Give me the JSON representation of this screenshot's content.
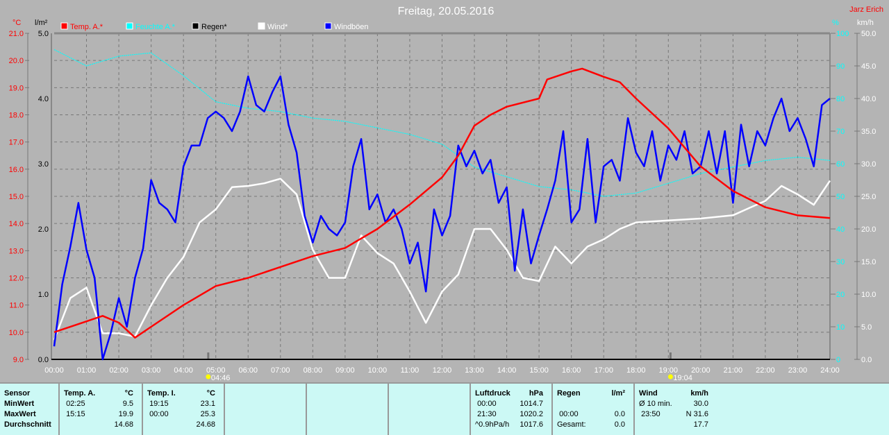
{
  "title": "Freitag, 20.05.2016",
  "author": "Jarz Erich",
  "colors": {
    "temp": "#ff0000",
    "humidity": "#00ffff",
    "rain": "#000000",
    "wind": "#ffffff",
    "gust": "#0000ff",
    "background": "#b4b4b4",
    "panel": "#ccf9f5"
  },
  "chart_data": {
    "type": "line",
    "title": "Freitag, 20.05.2016",
    "legend": [
      "Temp. A.*",
      "Feuchte A.*",
      "Regen*",
      "Wind*",
      "Windböen"
    ],
    "legend_placement": "top-left",
    "grid": true,
    "x_ticks": [
      "00:00",
      "01:00",
      "02:00",
      "03:00",
      "04:00",
      "05:00",
      "06:00",
      "07:00",
      "08:00",
      "09:00",
      "10:00",
      "11:00",
      "12:00",
      "13:00",
      "14:00",
      "15:00",
      "16:00",
      "17:00",
      "18:00",
      "19:00",
      "20:00",
      "21:00",
      "22:00",
      "23:00",
      "24:00"
    ],
    "axes": {
      "temp": {
        "unit": "°C",
        "range": [
          9.0,
          21.0
        ],
        "ticks": [
          "9.0",
          "10.0",
          "11.0",
          "12.0",
          "13.0",
          "14.0",
          "15.0",
          "16.0",
          "17.0",
          "18.0",
          "19.0",
          "20.0",
          "21.0"
        ]
      },
      "rain": {
        "unit": "l/m²",
        "range": [
          0,
          5.0
        ],
        "ticks": [
          "0.0",
          "1.0",
          "2.0",
          "3.0",
          "4.0",
          "5.0"
        ]
      },
      "humidity": {
        "unit": "%",
        "range": [
          0,
          100
        ],
        "ticks": [
          "0",
          "10",
          "20",
          "30",
          "40",
          "50",
          "60",
          "70",
          "80",
          "90",
          "100"
        ]
      },
      "wind": {
        "unit": "km/h",
        "range": [
          0,
          50
        ],
        "ticks": [
          "0.0",
          "5.0",
          "10.0",
          "15.0",
          "20.0",
          "25.0",
          "30.0",
          "35.0",
          "40.0",
          "45.0",
          "50.0"
        ]
      }
    },
    "markers": [
      {
        "label": "04:46",
        "type": "sunrise",
        "time": "04:46"
      },
      {
        "label": "19:04",
        "type": "sunset",
        "time": "19:04"
      }
    ],
    "series": [
      {
        "name": "Temp. A.*",
        "axis": "temp",
        "color": "#ff0000",
        "t": [
          "00:00",
          "01:00",
          "01:30",
          "02:00",
          "02:30",
          "03:00",
          "04:00",
          "05:00",
          "06:00",
          "07:00",
          "08:00",
          "09:00",
          "10:00",
          "11:00",
          "12:00",
          "12:30",
          "13:00",
          "13:30",
          "14:00",
          "15:00",
          "15:15",
          "16:00",
          "16:20",
          "17:00",
          "17:30",
          "18:00",
          "19:00",
          "20:00",
          "21:00",
          "22:00",
          "23:00",
          "24:00"
        ],
        "v": [
          10.0,
          10.4,
          10.6,
          10.35,
          9.8,
          10.2,
          11.0,
          11.7,
          12.0,
          12.4,
          12.8,
          13.1,
          13.8,
          14.7,
          15.7,
          16.5,
          17.6,
          18.0,
          18.3,
          18.6,
          19.3,
          19.6,
          19.7,
          19.4,
          19.2,
          18.6,
          17.5,
          16.1,
          15.2,
          14.6,
          14.3,
          14.2
        ]
      },
      {
        "name": "Feuchte A.*",
        "axis": "humidity",
        "color": "#00ffff",
        "t": [
          "00:00",
          "01:00",
          "02:00",
          "03:00",
          "04:00",
          "05:00",
          "06:00",
          "07:00",
          "08:00",
          "09:00",
          "10:00",
          "11:00",
          "12:00",
          "13:00",
          "14:00",
          "15:00",
          "16:00",
          "17:00",
          "18:00",
          "19:00",
          "20:00",
          "21:00",
          "22:00",
          "23:00",
          "24:00"
        ],
        "v": [
          95,
          90,
          93,
          94,
          87,
          79,
          77,
          76,
          74,
          73,
          71,
          69,
          66,
          59,
          56,
          53,
          52,
          50,
          51,
          54,
          57,
          59,
          61,
          62,
          61
        ]
      },
      {
        "name": "Regen*",
        "axis": "rain",
        "color": "#000000",
        "t": [
          "00:00",
          "24:00"
        ],
        "v": [
          0,
          0
        ]
      },
      {
        "name": "Wind*",
        "axis": "wind",
        "color": "#ffffff",
        "t": [
          "00:00",
          "00:30",
          "01:00",
          "01:30",
          "02:00",
          "02:30",
          "03:00",
          "03:30",
          "04:00",
          "04:30",
          "05:00",
          "05:30",
          "06:00",
          "06:30",
          "07:00",
          "07:30",
          "08:00",
          "08:30",
          "09:00",
          "09:30",
          "10:00",
          "10:30",
          "11:00",
          "11:30",
          "12:00",
          "12:30",
          "13:00",
          "13:30",
          "14:00",
          "14:30",
          "15:00",
          "15:30",
          "16:00",
          "16:30",
          "17:00",
          "17:30",
          "18:00",
          "19:00",
          "20:00",
          "21:00",
          "21:30",
          "22:00",
          "22:30",
          "23:00",
          "23:30",
          "24:00"
        ],
        "v": [
          3,
          9.4,
          11,
          4,
          4,
          3.5,
          8.3,
          12.5,
          15.7,
          21,
          23,
          26.4,
          26.6,
          27,
          27.7,
          25.3,
          16.8,
          12.5,
          12.5,
          19,
          16.3,
          14.7,
          10.4,
          5.6,
          10.4,
          13,
          20,
          20,
          16.8,
          12.5,
          12,
          17.3,
          14.7,
          17.3,
          18.4,
          20,
          21,
          21.3,
          21.6,
          22.1,
          23.2,
          24.3,
          26.6,
          25.3,
          23.7,
          27.4
        ]
      },
      {
        "name": "Windböen",
        "axis": "wind",
        "color": "#0000ff",
        "t": [
          "00:00",
          "00:15",
          "00:30",
          "00:45",
          "01:00",
          "01:15",
          "01:30",
          "01:45",
          "02:00",
          "02:15",
          "02:30",
          "02:45",
          "03:00",
          "03:15",
          "03:30",
          "03:45",
          "04:00",
          "04:15",
          "04:30",
          "04:45",
          "05:00",
          "05:15",
          "05:30",
          "05:45",
          "06:00",
          "06:15",
          "06:30",
          "06:45",
          "07:00",
          "07:15",
          "07:30",
          "07:45",
          "08:00",
          "08:15",
          "08:30",
          "08:45",
          "09:00",
          "09:15",
          "09:30",
          "09:45",
          "10:00",
          "10:15",
          "10:30",
          "10:45",
          "11:00",
          "11:15",
          "11:30",
          "11:45",
          "12:00",
          "12:15",
          "12:30",
          "12:45",
          "13:00",
          "13:15",
          "13:30",
          "13:45",
          "14:00",
          "14:15",
          "14:30",
          "14:45",
          "15:00",
          "15:15",
          "15:30",
          "15:45",
          "16:00",
          "16:15",
          "16:30",
          "16:45",
          "17:00",
          "17:15",
          "17:30",
          "17:45",
          "18:00",
          "18:15",
          "18:30",
          "18:45",
          "19:00",
          "19:15",
          "19:30",
          "19:45",
          "20:00",
          "20:15",
          "20:30",
          "20:45",
          "21:00",
          "21:15",
          "21:30",
          "21:45",
          "22:00",
          "22:15",
          "22:30",
          "22:45",
          "23:00",
          "23:15",
          "23:30",
          "23:45",
          "24:00"
        ],
        "v": [
          2,
          11.5,
          17.3,
          24,
          16.8,
          12.5,
          0,
          4,
          9.4,
          5,
          12.5,
          17,
          27.5,
          24,
          23,
          21,
          29.6,
          32.8,
          32.8,
          37,
          38,
          37,
          35,
          38,
          43.4,
          39,
          38,
          41,
          43.4,
          36,
          31.7,
          22,
          17.9,
          22,
          20,
          19,
          21,
          29.6,
          33.8,
          23,
          25.3,
          21,
          23,
          20,
          14.7,
          17.9,
          10.4,
          23,
          19,
          22,
          32.8,
          29.6,
          32,
          28.5,
          30.6,
          24,
          26.4,
          13.6,
          23,
          14.7,
          19,
          23,
          27.4,
          35,
          21,
          23,
          33.8,
          21,
          29.6,
          30.6,
          27.4,
          37,
          31.7,
          29.6,
          35,
          27.4,
          32.8,
          30.6,
          35,
          28.5,
          29.6,
          35,
          28.5,
          35,
          24,
          36,
          29.6,
          35,
          32.8,
          37,
          40,
          35,
          37,
          33.8,
          29.6,
          39,
          40
        ]
      }
    ]
  },
  "stats": {
    "sensor": {
      "header": "Sensor",
      "rows": [
        "MinWert",
        "MaxWert",
        "Durchschnitt"
      ]
    },
    "temp_a": {
      "header": "Temp. A.",
      "unit": "°C",
      "min_time": "02:25",
      "min": "9.5",
      "max_time": "15:15",
      "max": "19.9",
      "avg": "14.68"
    },
    "temp_i": {
      "header": "Temp. I.",
      "unit": "°C",
      "min_time": "19:15",
      "min": "23.1",
      "max_time": "00:00",
      "max": "25.3",
      "avg": "24.68"
    },
    "pressure": {
      "header": "Luftdruck",
      "unit": "hPa",
      "r1_time": "00:00",
      "r1": "1014.7",
      "r2_time": "21:30",
      "r2": "1020.2",
      "r3_label": "^0.9hPa/h",
      "r3": "1017.6"
    },
    "rain": {
      "header": "Regen",
      "unit": "l/m²",
      "r2_time": "00:00",
      "r2": "0.0",
      "r3_label": "Gesamt:",
      "r3": "0.0"
    },
    "wind": {
      "header": "Wind",
      "unit": "km/h",
      "r1_label": "Ø 10 min.",
      "r1": "30.0",
      "r2_time": "23:50",
      "r2": "N 31.6",
      "r3": "17.7"
    }
  }
}
